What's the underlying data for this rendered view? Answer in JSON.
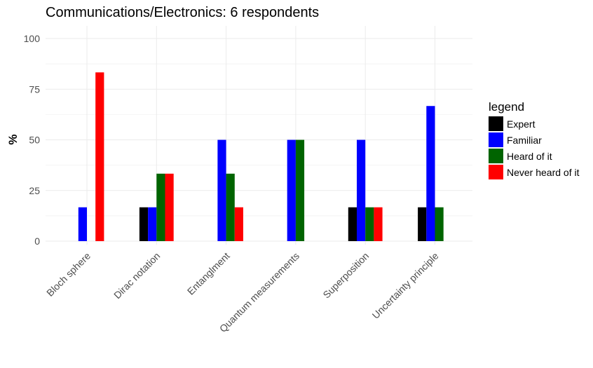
{
  "chart_data": {
    "type": "bar",
    "title": "Communications/Electronics: 6 respondents",
    "xlabel": "",
    "ylabel": "%",
    "ylim": [
      0,
      100
    ],
    "yticks": [
      0,
      25,
      50,
      75,
      100
    ],
    "grid": true,
    "legend_title": "legend",
    "legend_position": "right",
    "categories": [
      "Bloch sphere",
      "Dirac notation",
      "Entanglment",
      "Quantum measurements",
      "Superposition",
      "Uncertainty principle"
    ],
    "series": [
      {
        "name": "Expert",
        "color": "#000000",
        "values": [
          0,
          16.7,
          0,
          0,
          16.7,
          16.7
        ]
      },
      {
        "name": "Familiar",
        "color": "#0000ff",
        "values": [
          16.7,
          16.7,
          50,
          50,
          50,
          66.7
        ]
      },
      {
        "name": "Heard of it",
        "color": "#006400",
        "values": [
          0,
          33.3,
          33.3,
          50,
          16.7,
          16.7
        ]
      },
      {
        "name": "Never heard of it",
        "color": "#ff0000",
        "values": [
          83.3,
          33.3,
          16.7,
          0,
          16.7,
          0
        ]
      }
    ]
  }
}
